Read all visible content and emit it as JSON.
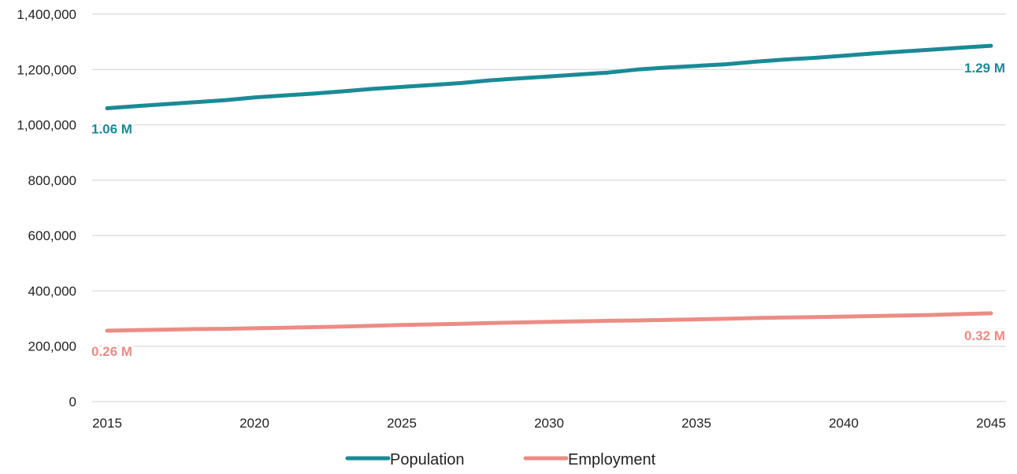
{
  "chart_data": {
    "type": "line",
    "title": "",
    "xlabel": "",
    "ylabel": "",
    "x": [
      2015,
      2016,
      2017,
      2018,
      2019,
      2020,
      2021,
      2022,
      2023,
      2024,
      2025,
      2026,
      2027,
      2028,
      2029,
      2030,
      2031,
      2032,
      2033,
      2034,
      2035,
      2036,
      2037,
      2038,
      2039,
      2040,
      2041,
      2042,
      2043,
      2044,
      2045
    ],
    "xlim": [
      2015,
      2045
    ],
    "x_ticks": [
      2015,
      2020,
      2025,
      2030,
      2035,
      2040,
      2045
    ],
    "x_tick_labels": [
      "2015",
      "2020",
      "2025",
      "2030",
      "2035",
      "2040",
      "2045"
    ],
    "ylim": [
      0,
      1400000
    ],
    "y_ticks": [
      0,
      200000,
      400000,
      600000,
      800000,
      1000000,
      1200000,
      1400000
    ],
    "y_tick_labels": [
      "0",
      "200,000",
      "400,000",
      "600,000",
      "800,000",
      "1,000,000",
      "1,200,000",
      "1,400,000"
    ],
    "grid": true,
    "legend_position": "bottom",
    "series": [
      {
        "name": "Population",
        "color": "#1a8a96",
        "values": [
          1060000,
          1068000,
          1075000,
          1082000,
          1089000,
          1099000,
          1106000,
          1113000,
          1121000,
          1130000,
          1137000,
          1144000,
          1151000,
          1161000,
          1168000,
          1175000,
          1182000,
          1189000,
          1200000,
          1207000,
          1213000,
          1219000,
          1228000,
          1236000,
          1242000,
          1250000,
          1258000,
          1265000,
          1272000,
          1279000,
          1286000
        ],
        "start_label": "1.06 M",
        "end_label": "1.29 M"
      },
      {
        "name": "Employment",
        "color": "#ec8c84",
        "values": [
          256000,
          258000,
          260000,
          262000,
          263000,
          265000,
          267000,
          269000,
          271000,
          274000,
          277000,
          279000,
          281000,
          284000,
          286000,
          288000,
          290000,
          292000,
          293000,
          295000,
          297000,
          299000,
          302000,
          304000,
          305000,
          307000,
          309000,
          311000,
          313000,
          316000,
          319000
        ],
        "start_label": "0.26 M",
        "end_label": "0.32 M"
      }
    ]
  }
}
